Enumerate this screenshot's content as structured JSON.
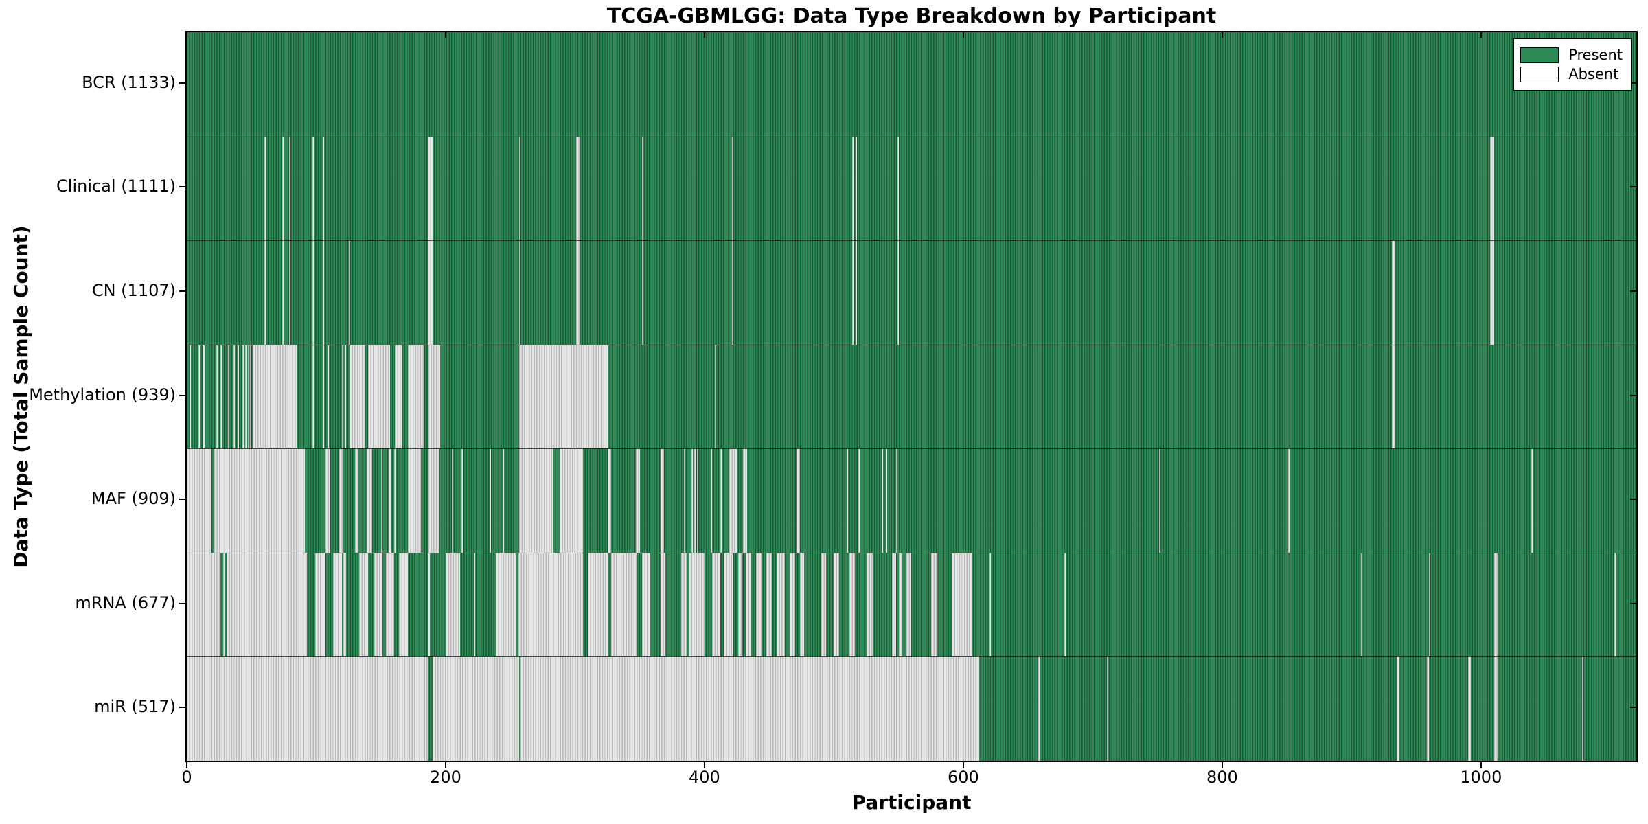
{
  "chart_data": {
    "type": "heatmap",
    "title": "TCGA-GBMLGG: Data Type Breakdown by Participant",
    "xlabel": "Participant",
    "ylabel": "Data Type (Total Sample Count)",
    "xlim": [
      0,
      1120
    ],
    "x_ticks": [
      0,
      200,
      400,
      600,
      800,
      1000
    ],
    "n_participants": 1133,
    "grid": "row-dividers",
    "legend_position": "upper right",
    "legend": [
      {
        "label": "Present",
        "color": "#2e8b57"
      },
      {
        "label": "Absent",
        "color": "#ffffff"
      }
    ],
    "colors": {
      "present": "#2e8b57",
      "absent_fill": "#e6e6e6",
      "border": "#000000",
      "background": "#ffffff"
    },
    "rows": [
      {
        "name": "BCR",
        "total": 1133,
        "label": "BCR (1133)",
        "absent": []
      },
      {
        "name": "Clinical",
        "total": 1111,
        "label": "Clinical (1111)",
        "absent": [
          [
            60,
            61
          ],
          [
            74,
            75
          ],
          [
            79,
            80
          ],
          [
            97,
            98
          ],
          [
            105,
            106
          ],
          [
            186,
            190
          ],
          [
            257,
            258
          ],
          [
            301,
            304
          ],
          [
            352,
            353
          ],
          [
            421,
            422
          ],
          [
            514,
            515
          ],
          [
            517,
            518
          ],
          [
            549,
            550
          ],
          [
            1007,
            1010
          ]
        ]
      },
      {
        "name": "CN",
        "total": 1107,
        "label": "CN (1107)",
        "absent": [
          [
            60,
            61
          ],
          [
            74,
            75
          ],
          [
            79,
            80
          ],
          [
            97,
            98
          ],
          [
            105,
            106
          ],
          [
            125,
            126
          ],
          [
            186,
            190
          ],
          [
            257,
            258
          ],
          [
            301,
            304
          ],
          [
            352,
            353
          ],
          [
            421,
            422
          ],
          [
            514,
            515
          ],
          [
            517,
            518
          ],
          [
            549,
            550
          ],
          [
            931,
            933
          ],
          [
            1007,
            1010
          ]
        ]
      },
      {
        "name": "Methylation",
        "total": 939,
        "label": "Methylation (939)",
        "absent": [
          [
            2,
            3
          ],
          [
            9,
            10
          ],
          [
            12,
            14
          ],
          [
            23,
            24
          ],
          [
            26,
            27
          ],
          [
            32,
            33
          ],
          [
            36,
            37
          ],
          [
            39,
            40
          ],
          [
            43,
            44
          ],
          [
            45,
            46
          ],
          [
            47,
            48
          ],
          [
            49,
            50
          ],
          [
            51,
            85
          ],
          [
            97,
            98
          ],
          [
            105,
            106
          ],
          [
            109,
            110
          ],
          [
            120,
            121
          ],
          [
            122,
            123
          ],
          [
            126,
            138
          ],
          [
            140,
            157
          ],
          [
            161,
            166
          ],
          [
            171,
            183
          ],
          [
            187,
            196
          ],
          [
            257,
            326
          ],
          [
            408,
            409
          ],
          [
            931,
            933
          ]
        ]
      },
      {
        "name": "MAF",
        "total": 909,
        "label": "MAF (909)",
        "absent": [
          [
            0,
            19
          ],
          [
            21,
            91
          ],
          [
            107,
            111
          ],
          [
            118,
            121
          ],
          [
            130,
            132
          ],
          [
            139,
            143
          ],
          [
            150,
            151
          ],
          [
            156,
            158
          ],
          [
            160,
            161
          ],
          [
            171,
            181
          ],
          [
            187,
            195
          ],
          [
            205,
            206
          ],
          [
            212,
            213
          ],
          [
            234,
            235
          ],
          [
            244,
            245
          ],
          [
            257,
            283
          ],
          [
            288,
            306
          ],
          [
            325,
            328
          ],
          [
            347,
            350
          ],
          [
            366,
            369
          ],
          [
            384,
            385
          ],
          [
            390,
            391
          ],
          [
            392,
            393
          ],
          [
            394,
            395
          ],
          [
            405,
            406
          ],
          [
            412,
            413
          ],
          [
            419,
            425
          ],
          [
            430,
            433
          ],
          [
            471,
            474
          ],
          [
            510,
            511
          ],
          [
            519,
            520
          ],
          [
            537,
            538
          ],
          [
            540,
            541
          ],
          [
            548,
            549
          ],
          [
            751,
            752
          ],
          [
            851,
            852
          ],
          [
            1039,
            1040
          ]
        ]
      },
      {
        "name": "mRNA",
        "total": 677,
        "label": "mRNA (677)",
        "absent": [
          [
            0,
            26
          ],
          [
            28,
            29
          ],
          [
            31,
            93
          ],
          [
            99,
            107
          ],
          [
            113,
            120
          ],
          [
            121,
            123
          ],
          [
            133,
            140
          ],
          [
            145,
            151
          ],
          [
            154,
            160
          ],
          [
            164,
            171
          ],
          [
            186,
            188
          ],
          [
            200,
            211
          ],
          [
            222,
            223
          ],
          [
            239,
            254
          ],
          [
            256,
            306
          ],
          [
            310,
            326
          ],
          [
            328,
            348
          ],
          [
            352,
            358
          ],
          [
            366,
            370
          ],
          [
            382,
            386
          ],
          [
            388,
            400
          ],
          [
            406,
            412
          ],
          [
            415,
            422
          ],
          [
            426,
            429
          ],
          [
            432,
            436
          ],
          [
            440,
            444
          ],
          [
            448,
            452
          ],
          [
            456,
            462
          ],
          [
            466,
            470
          ],
          [
            474,
            477
          ],
          [
            490,
            494
          ],
          [
            500,
            504
          ],
          [
            512,
            516
          ],
          [
            525,
            530
          ],
          [
            545,
            548
          ],
          [
            550,
            553
          ],
          [
            556,
            560
          ],
          [
            575,
            580
          ],
          [
            591,
            607
          ],
          [
            620,
            621
          ],
          [
            678,
            679
          ],
          [
            907,
            908
          ],
          [
            960,
            961
          ],
          [
            1010,
            1013
          ],
          [
            1103,
            1104
          ]
        ]
      },
      {
        "name": "miR",
        "total": 517,
        "label": "miR (517)",
        "absent": [
          [
            0,
            186
          ],
          [
            190,
            257
          ],
          [
            258,
            612
          ],
          [
            658,
            659
          ],
          [
            711,
            712
          ],
          [
            935,
            937
          ],
          [
            958,
            960
          ],
          [
            990,
            992
          ],
          [
            1010,
            1013
          ],
          [
            1078,
            1079
          ]
        ]
      }
    ]
  }
}
